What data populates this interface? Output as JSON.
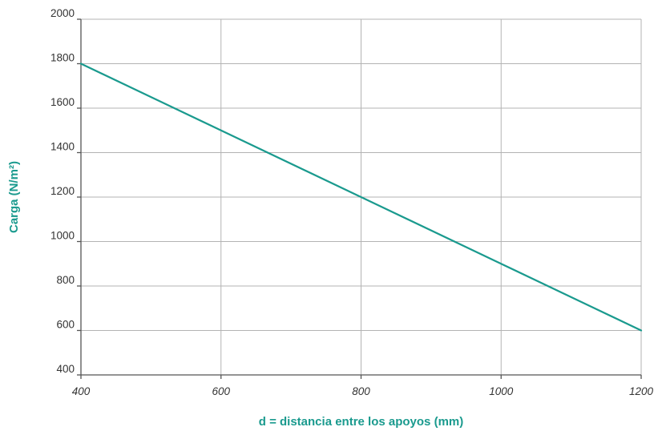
{
  "chart_data": {
    "type": "line",
    "xlabel": "d = distancia entre los apoyos (mm)",
    "ylabel": "Carga (N/m²)",
    "xlim": [
      400,
      1200
    ],
    "ylim": [
      400,
      2000
    ],
    "x_ticks": [
      400,
      600,
      800,
      1000,
      1200
    ],
    "y_ticks": [
      400,
      600,
      800,
      1000,
      1200,
      1400,
      1600,
      1800,
      2000
    ],
    "x_tick_style": "italic",
    "grid": true,
    "legend": false,
    "colors": {
      "series": "#1a9a8e",
      "axis_label": "#1a9a8e",
      "grid": "#b3b3b3",
      "axis": "#555555",
      "tick_text": "#333333"
    },
    "series": [
      {
        "x": [
          400,
          600,
          800,
          1000,
          1200
        ],
        "y": [
          1800,
          1500,
          1200,
          900,
          600
        ]
      }
    ]
  }
}
